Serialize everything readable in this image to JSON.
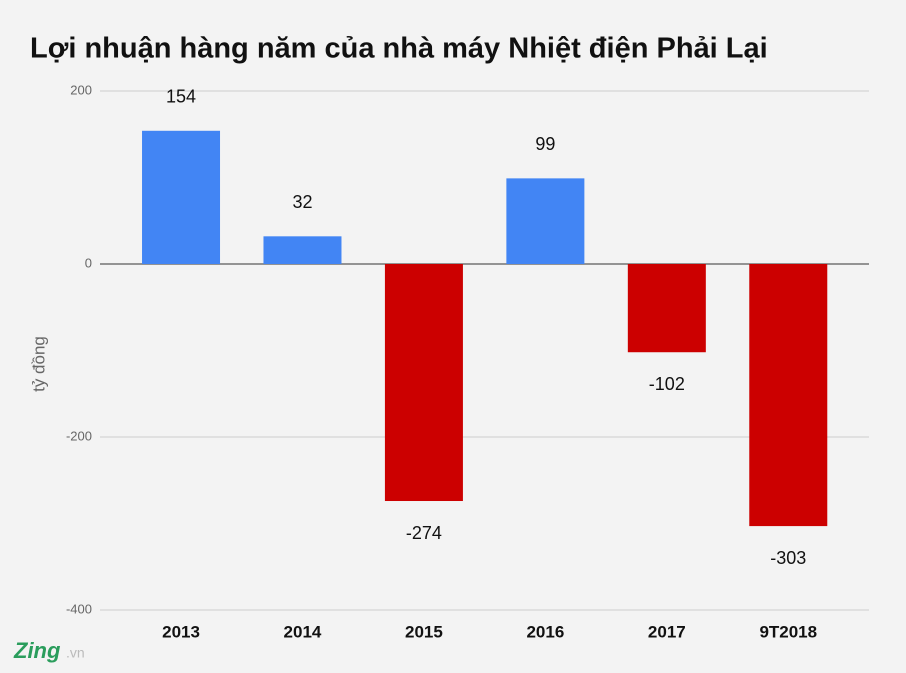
{
  "chart_data": {
    "type": "bar",
    "title": "Lợi nhuận hàng năm của nhà máy Nhiệt điện Phải Lại",
    "y_label": "tỷ đồng",
    "categories": [
      "2013",
      "2014",
      "2015",
      "2016",
      "2017",
      "9T2018"
    ],
    "values": [
      154,
      32,
      -274,
      99,
      -102,
      -303
    ],
    "colors": [
      "#4285f4",
      "#4285f4",
      "#cc0000",
      "#4285f4",
      "#cc0000",
      "#cc0000"
    ],
    "ylim": [
      -400,
      200
    ],
    "yticks": [
      -400,
      -200,
      0,
      200
    ],
    "grid": true
  },
  "watermark": {
    "brand": "Zing",
    "suffix": ".vn"
  }
}
